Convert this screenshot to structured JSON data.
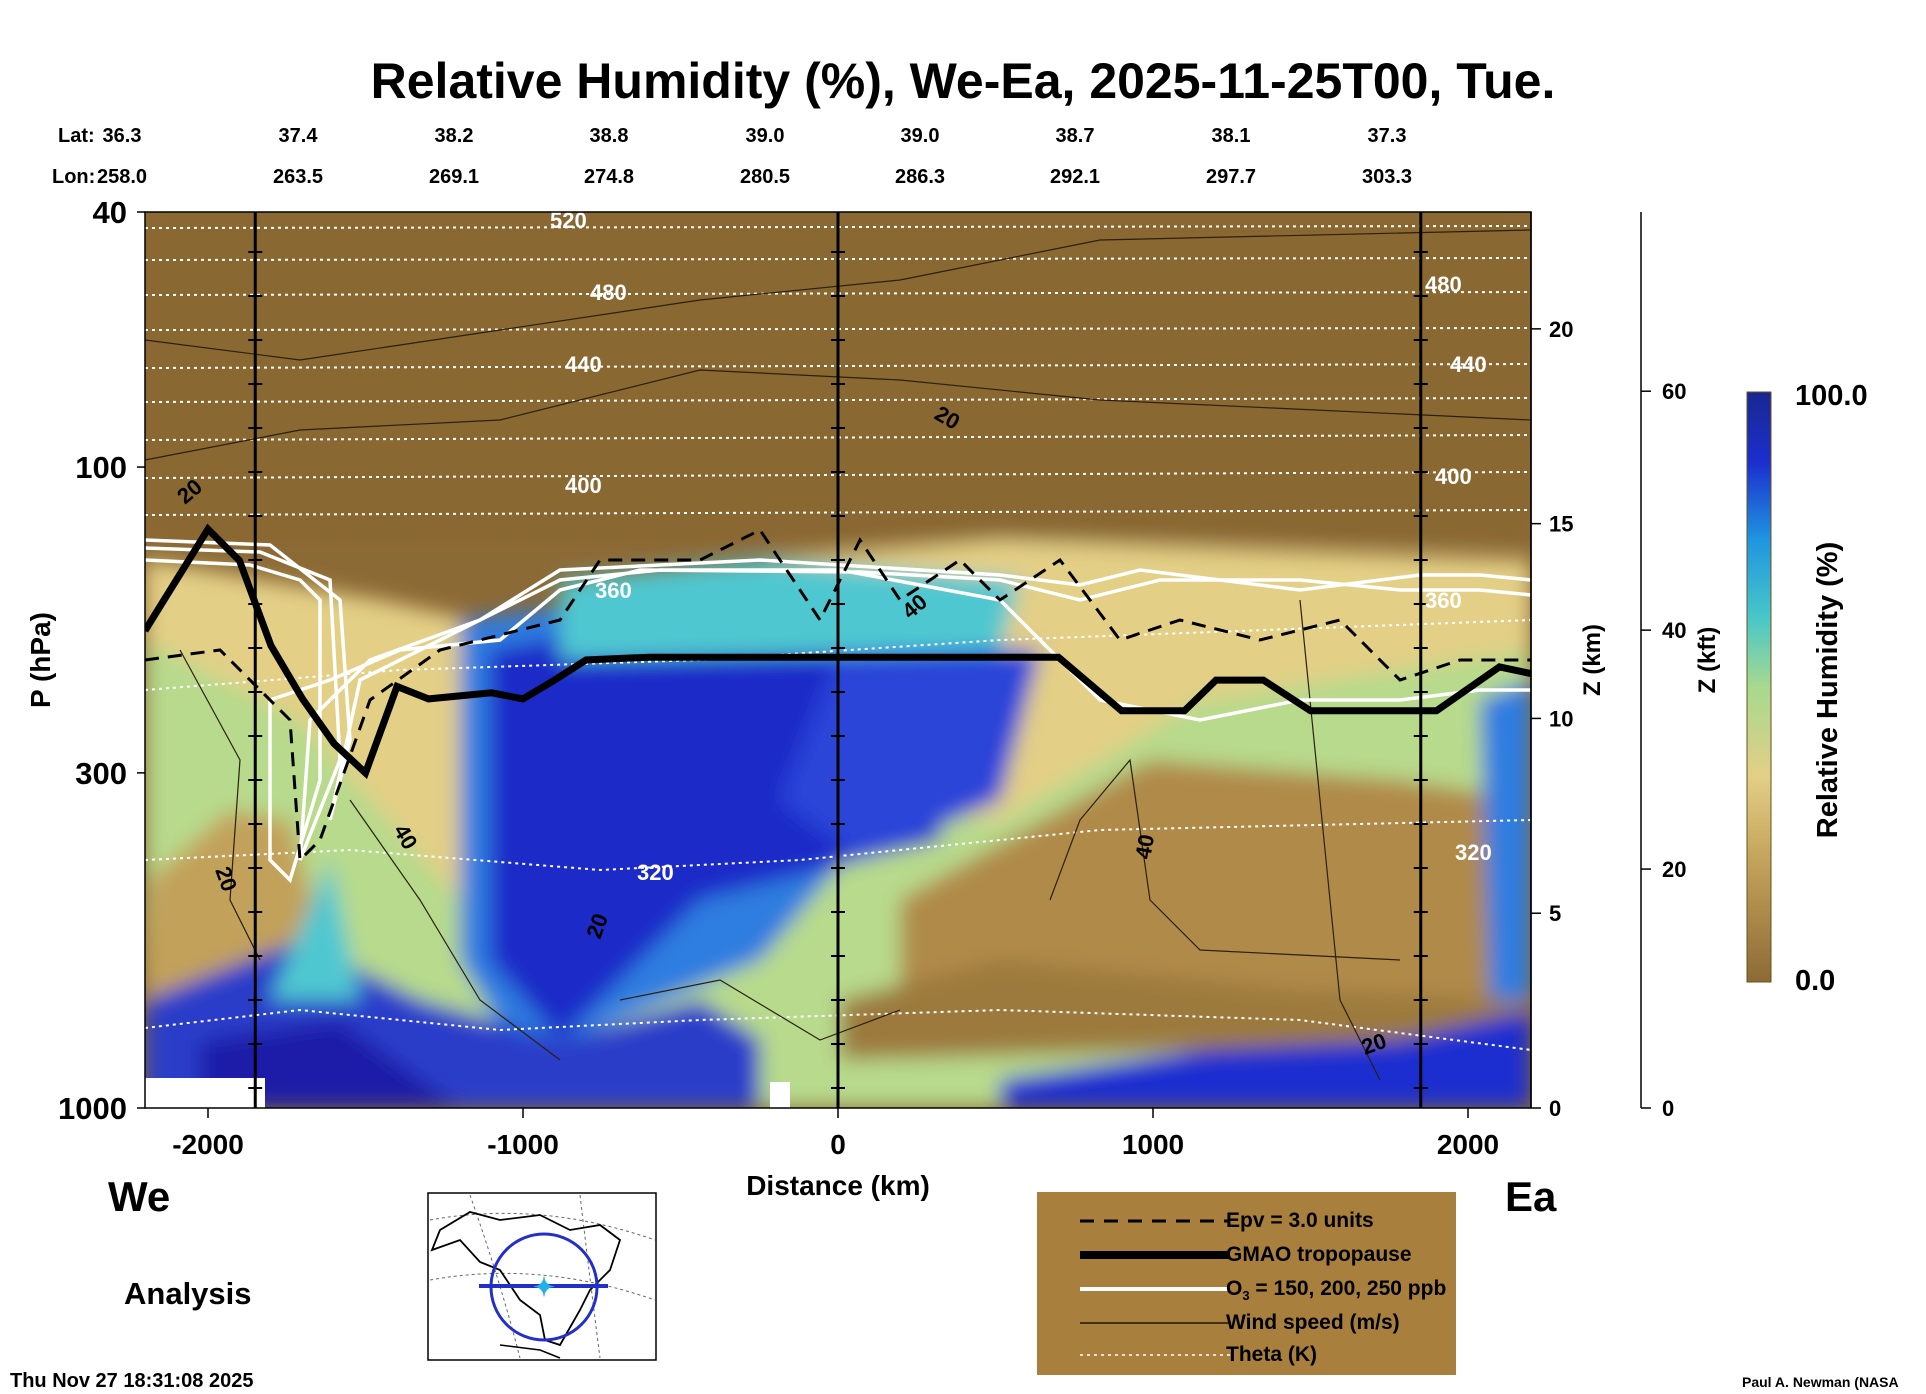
{
  "title": "Relative Humidity (%), We-Ea, 2025-11-25T00, Tue.",
  "lat_label": "Lat:",
  "lon_label": "Lon:",
  "lat_values": [
    "36.3",
    "37.4",
    "38.2",
    "38.8",
    "39.0",
    "39.0",
    "38.7",
    "38.1",
    "37.3"
  ],
  "lon_values": [
    "258.0",
    "263.5",
    "269.1",
    "274.8",
    "280.5",
    "286.3",
    "292.1",
    "297.7",
    "303.3"
  ],
  "left_end_label": "We",
  "right_end_label": "Ea",
  "analysis_label": "Analysis",
  "timestamp": "Thu Nov 27 18:31:08 2025",
  "credit": "Paul A. Newman (NASA",
  "colors": {
    "dry": "#8c6a35",
    "moist": "#c9b46a",
    "mid": "#a7d98f",
    "wet": "#22aadd",
    "saturated": "#1a1fa8",
    "legend_bg": "#a87f3c"
  },
  "legend": {
    "epv": "Epv = 3.0 units",
    "tropopause": "GMAO tropopause",
    "o3_prefix": "O",
    "o3_sub": "3",
    "o3_suffix": " = 150, 200, 250 ppb",
    "wind": "Wind speed (m/s)",
    "theta": "Theta (K)"
  },
  "chart_data": {
    "type": "heatmap",
    "title": "Relative Humidity (%), We-Ea, 2025-11-25T00, Tue.",
    "xlabel": "Distance (km)",
    "ylabel": "P (hPa)",
    "xlim": [
      -2200,
      2200
    ],
    "ylim": [
      1000,
      40
    ],
    "y_scale": "log",
    "x_ticks": [
      "-2000",
      "-1000",
      "0",
      "1000",
      "2000"
    ],
    "y_ticks": [
      "40",
      "100",
      "300",
      "1000"
    ],
    "z_km_label": "Z (km)",
    "z_km_ticks": [
      "0",
      "5",
      "10",
      "15",
      "20"
    ],
    "z_kft_label": "Z (kft)",
    "z_kft_ticks": [
      "0",
      "20",
      "40",
      "60"
    ],
    "colorbar_label": "Relative Humidity (%)",
    "colorbar_range": [
      "0.0",
      "100.0"
    ],
    "theta_labels": [
      "520",
      "480",
      "440",
      "400",
      "360",
      "320"
    ],
    "wind_labels": [
      "20",
      "40"
    ],
    "tropopause_points": [
      [
        -2200,
        180
      ],
      [
        -2100,
        150
      ],
      [
        -2000,
        125
      ],
      [
        -1900,
        140
      ],
      [
        -1800,
        190
      ],
      [
        -1700,
        230
      ],
      [
        -1600,
        270
      ],
      [
        -1500,
        300
      ],
      [
        -1400,
        220
      ],
      [
        -1300,
        230
      ],
      [
        -1100,
        225
      ],
      [
        -1000,
        230
      ],
      [
        -900,
        215
      ],
      [
        -800,
        200
      ],
      [
        -600,
        198
      ],
      [
        0,
        198
      ],
      [
        300,
        198
      ],
      [
        700,
        198
      ],
      [
        900,
        240
      ],
      [
        1100,
        240
      ],
      [
        1200,
        215
      ],
      [
        1350,
        215
      ],
      [
        1500,
        240
      ],
      [
        1900,
        240
      ],
      [
        2100,
        205
      ],
      [
        2200,
        210
      ]
    ],
    "profile_lines_km": [
      -1850,
      0,
      1850
    ]
  }
}
